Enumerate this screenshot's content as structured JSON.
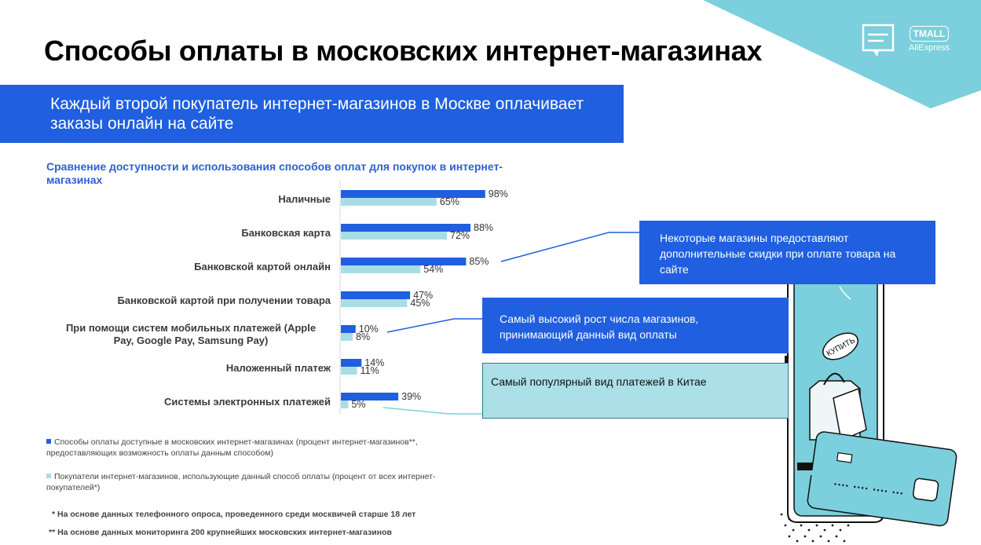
{
  "title": "Способы оплаты в московских интернет-магазинах",
  "subtitle": "Каждый второй покупатель интернет-магазинов в Москве оплачивает заказы онлайн на сайте",
  "logos": {
    "tmall": "TMALL",
    "aliexpress": "AliExpress"
  },
  "colors": {
    "series1": "#1f5fe0",
    "series2": "#a9dde6",
    "accent": "#7ccfdc"
  },
  "chart_data": {
    "type": "bar",
    "orientation": "horizontal",
    "title": "Сравнение доступности и использования способов оплат для покупок в интернет-магазинах",
    "categories": [
      "Наличные",
      "Банковская карта",
      "Банковской картой онлайн",
      "Банковской картой при получении товара",
      "При помощи систем мобильных платежей (Apple Pay, Google Pay, Samsung Pay)",
      "Наложенный платеж",
      "Системы электронных платежей"
    ],
    "series": [
      {
        "name": "Способы оплаты доступные в московских интернет-магазинах (процент интернет-магазинов**, предоставляющих возможность оплаты данным способом)",
        "values": [
          98,
          88,
          85,
          47,
          10,
          14,
          39
        ],
        "labels": [
          "98%",
          "88%",
          "85%",
          "47%",
          "10%",
          "14%",
          "39%"
        ]
      },
      {
        "name": "Покупатели интернет-магазинов, использующие данный способ оплаты (процент от всех интернет-покупателей*)",
        "values": [
          65,
          72,
          54,
          45,
          8,
          11,
          5
        ],
        "labels": [
          "65%",
          "72%",
          "54%",
          "45%",
          "8%",
          "11%",
          "5%"
        ]
      }
    ],
    "xlim": [
      0,
      100
    ],
    "grid": false,
    "legend_position": "bottom-left"
  },
  "legend": {
    "item1": "Способы оплаты доступные в московских интернет-магазинах (процент интернет-магазинов**, предоставляющих возможность оплаты данным способом)",
    "item2": "Покупатели интернет-магазинов, использующие данный способ оплаты (процент от всех интернет-покупателей*)"
  },
  "footnotes": {
    "f1": "* На основе данных телефонного опроса, проведенного среди москвичей старше 18 лет",
    "f2": "** На основе данных мониторинга 200 крупнейших московских интернет-магазинов"
  },
  "callouts": {
    "c1": "Некоторые магазины предоставляют дополнительные скидки при оплате товара на сайте",
    "c2": "Самый высокий рост числа магазинов, принимающий данный вид оплаты",
    "c3": "Самый популярный вид платежей в Китае"
  },
  "phone": {
    "button_label": "КУПИТЬ"
  }
}
